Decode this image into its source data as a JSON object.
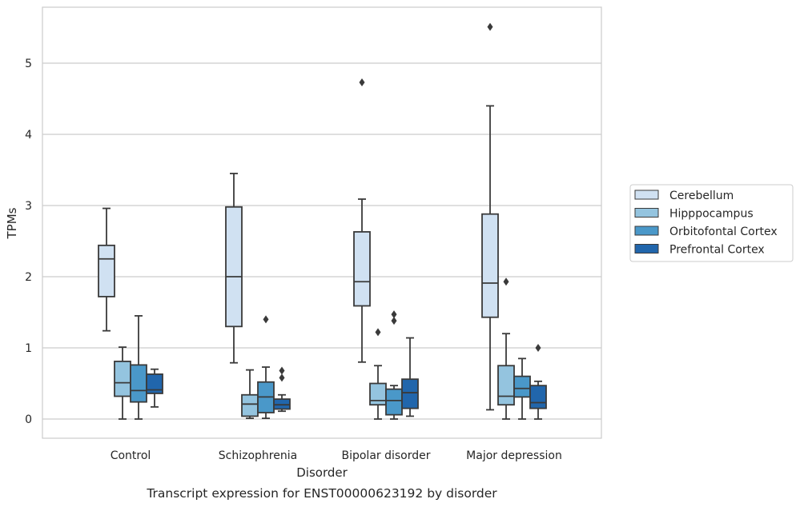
{
  "chart_data": {
    "type": "box",
    "caption": "Transcript expression for ENST00000623192 by disorder",
    "xlabel": "Disorder",
    "ylabel": "TPMs",
    "ylim": [
      -0.27,
      5.85
    ],
    "yticks": [
      0,
      1,
      2,
      3,
      4,
      5
    ],
    "grid": true,
    "legend_position": "right",
    "categories": [
      "Control",
      "Schizophrenia",
      "Bipolar disorder",
      "Major depression"
    ],
    "series": [
      {
        "name": "Cerebellum",
        "color": "#d0e1f2",
        "boxes": [
          {
            "whisker_low": 1.24,
            "q1": 1.72,
            "median": 2.25,
            "q3": 2.44,
            "whisker_high": 2.96,
            "outliers": []
          },
          {
            "whisker_low": 0.79,
            "q1": 1.3,
            "median": 2.0,
            "q3": 2.98,
            "whisker_high": 3.45,
            "outliers": []
          },
          {
            "whisker_low": 0.8,
            "q1": 1.59,
            "median": 1.93,
            "q3": 2.63,
            "whisker_high": 3.09,
            "outliers": [
              4.73
            ]
          },
          {
            "whisker_low": 0.13,
            "q1": 1.43,
            "median": 1.91,
            "q3": 2.88,
            "whisker_high": 4.4,
            "outliers": [
              5.51
            ]
          }
        ]
      },
      {
        "name": "Hipppocampus",
        "color": "#94c4df",
        "boxes": [
          {
            "whisker_low": 0.0,
            "q1": 0.32,
            "median": 0.51,
            "q3": 0.81,
            "whisker_high": 1.01,
            "outliers": []
          },
          {
            "whisker_low": 0.01,
            "q1": 0.04,
            "median": 0.21,
            "q3": 0.34,
            "whisker_high": 0.69,
            "outliers": []
          },
          {
            "whisker_low": 0.0,
            "q1": 0.2,
            "median": 0.26,
            "q3": 0.5,
            "whisker_high": 0.75,
            "outliers": [
              1.22
            ]
          },
          {
            "whisker_low": 0.0,
            "q1": 0.2,
            "median": 0.32,
            "q3": 0.75,
            "whisker_high": 1.2,
            "outliers": [
              1.93
            ]
          }
        ]
      },
      {
        "name": "Orbitofontal Cortex",
        "color": "#4a98c9",
        "boxes": [
          {
            "whisker_low": 0.0,
            "q1": 0.24,
            "median": 0.4,
            "q3": 0.76,
            "whisker_high": 1.45,
            "outliers": []
          },
          {
            "whisker_low": 0.01,
            "q1": 0.09,
            "median": 0.31,
            "q3": 0.52,
            "whisker_high": 0.73,
            "outliers": [
              1.4
            ]
          },
          {
            "whisker_low": 0.0,
            "q1": 0.06,
            "median": 0.26,
            "q3": 0.42,
            "whisker_high": 0.47,
            "outliers": [
              1.38,
              1.47
            ]
          },
          {
            "whisker_low": 0.0,
            "q1": 0.31,
            "median": 0.43,
            "q3": 0.6,
            "whisker_high": 0.85,
            "outliers": []
          }
        ]
      },
      {
        "name": "Prefrontal Cortex",
        "color": "#2166ac",
        "boxes": [
          {
            "whisker_low": 0.17,
            "q1": 0.36,
            "median": 0.41,
            "q3": 0.63,
            "whisker_high": 0.7,
            "outliers": []
          },
          {
            "whisker_low": 0.11,
            "q1": 0.14,
            "median": 0.2,
            "q3": 0.28,
            "whisker_high": 0.34,
            "outliers": [
              0.58,
              0.68
            ]
          },
          {
            "whisker_low": 0.04,
            "q1": 0.15,
            "median": 0.37,
            "q3": 0.56,
            "whisker_high": 1.14,
            "outliers": []
          },
          {
            "whisker_low": 0.0,
            "q1": 0.15,
            "median": 0.23,
            "q3": 0.47,
            "whisker_high": 0.53,
            "outliers": [
              1.0
            ]
          }
        ]
      }
    ]
  }
}
